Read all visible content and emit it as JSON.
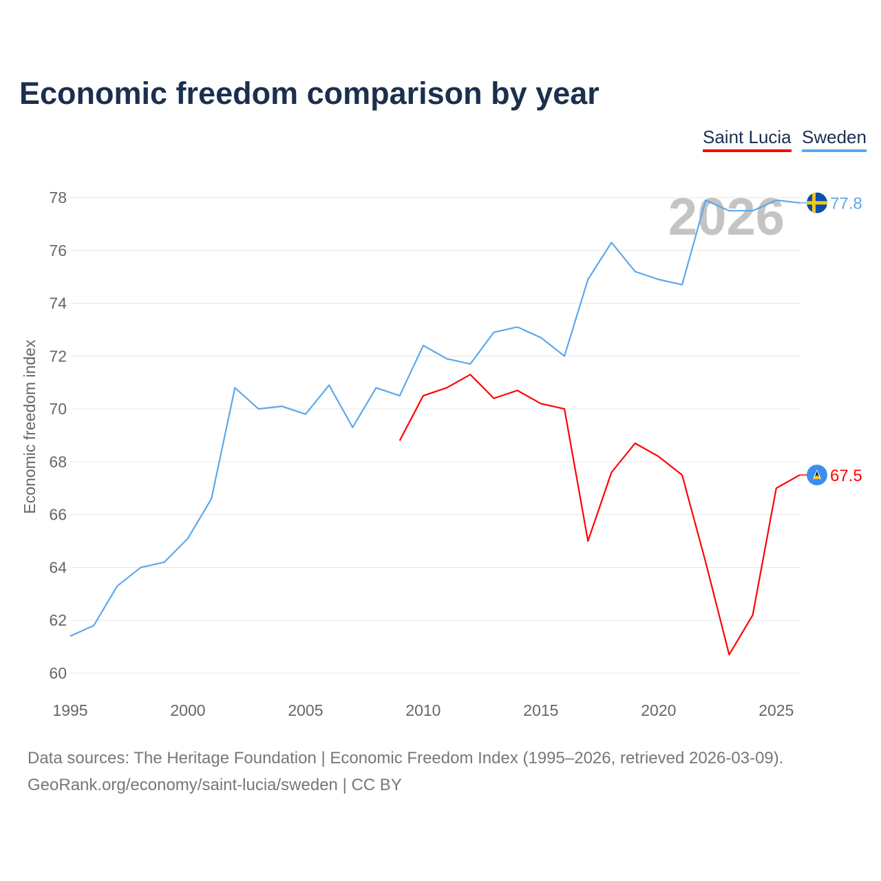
{
  "title": "Economic freedom comparison by year",
  "footer": {
    "line1": "Data sources: The Heritage Foundation | Economic Freedom Index (1995–2026, retrieved 2026-03-09).",
    "line2": "GeoRank.org/economy/saint-lucia/sweden | CC BY"
  },
  "chart_data": {
    "type": "line",
    "title": "Economic freedom comparison by year",
    "xlabel": "",
    "ylabel": "Economic freedom index",
    "xlim": [
      1995,
      2026
    ],
    "ylim": [
      60,
      78
    ],
    "x_ticks": [
      "1995",
      "2000",
      "2005",
      "2010",
      "2015",
      "2020",
      "2025"
    ],
    "y_ticks": [
      "60",
      "62",
      "64",
      "66",
      "68",
      "70",
      "72",
      "74",
      "76",
      "78"
    ],
    "grid": true,
    "legend_position": "top-right",
    "watermark_year": "2026",
    "series": [
      {
        "name": "Saint Lucia",
        "color": "#ff0000",
        "flag": "saint-lucia-flag",
        "end_label": "67.5",
        "x": [
          2009,
          2010,
          2011,
          2012,
          2013,
          2014,
          2015,
          2016,
          2017,
          2018,
          2019,
          2020,
          2021,
          2022,
          2023,
          2024,
          2025,
          2026
        ],
        "values": [
          68.8,
          70.5,
          70.8,
          71.3,
          70.4,
          70.7,
          70.2,
          70.0,
          65.0,
          67.6,
          68.7,
          68.2,
          67.5,
          64.2,
          60.7,
          62.2,
          67.0,
          67.5
        ]
      },
      {
        "name": "Sweden",
        "color": "#5ba8ec",
        "flag": "sweden-flag",
        "end_label": "77.8",
        "x": [
          1995,
          1996,
          1997,
          1998,
          1999,
          2000,
          2001,
          2002,
          2003,
          2004,
          2005,
          2006,
          2007,
          2008,
          2009,
          2010,
          2011,
          2012,
          2013,
          2014,
          2015,
          2016,
          2017,
          2018,
          2019,
          2020,
          2021,
          2022,
          2023,
          2024,
          2025,
          2026
        ],
        "values": [
          61.4,
          61.8,
          63.3,
          64.0,
          64.2,
          65.1,
          66.6,
          70.8,
          70.0,
          70.1,
          69.8,
          70.9,
          69.3,
          70.8,
          70.5,
          72.4,
          71.9,
          71.7,
          72.9,
          73.1,
          72.7,
          72.0,
          74.9,
          76.3,
          75.2,
          74.9,
          74.7,
          77.9,
          77.5,
          77.5,
          77.9,
          77.8
        ]
      }
    ]
  }
}
